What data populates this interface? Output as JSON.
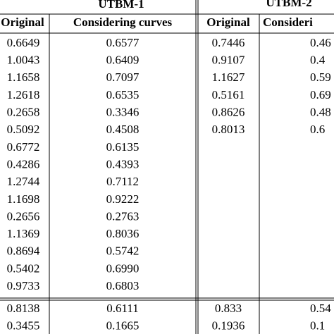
{
  "table": {
    "groups": [
      "UTBM-1",
      "UTBM-2"
    ],
    "columns": [
      "Original",
      "Considering curves",
      "Original",
      "Consideri"
    ],
    "utbm1": {
      "original": [
        "0.6649",
        "1.0043",
        "1.1658",
        "1.2618",
        "0.2658",
        "0.5092",
        "0.6772",
        "0.4286",
        "1.2744",
        "1.1698",
        "0.2656",
        "1.1369",
        "0.8694",
        "0.5402",
        "0.9733"
      ],
      "curves": [
        "0.6577",
        "0.6409",
        "0.7097",
        "0.6535",
        "0.3346",
        "0.4508",
        "0.6135",
        "0.4393",
        "0.7112",
        "0.9222",
        "0.2763",
        "0.8036",
        "0.5742",
        "0.6990",
        "0.6803"
      ]
    },
    "utbm2": {
      "original": [
        "0.7446",
        "0.9107",
        "1.1627",
        "0.5161",
        "0.8626",
        "0.8013"
      ],
      "curves": [
        "0.46",
        "0.4",
        "0.59",
        "0.69",
        "0.48",
        "0.6"
      ]
    },
    "summary": {
      "utbm1_original": [
        "0.8138",
        "0.3455"
      ],
      "utbm1_curves": [
        "0.6111",
        "0.1665"
      ],
      "utbm2_original": [
        "0.833",
        "0.1936"
      ],
      "utbm2_curves": [
        "0.54",
        "0.1"
      ]
    }
  }
}
